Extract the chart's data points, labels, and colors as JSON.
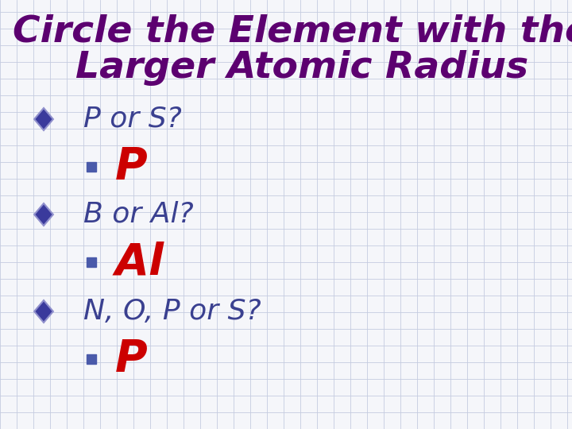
{
  "background_color": "#f5f6fa",
  "grid_color": "#c5cce0",
  "title_line1": "Circle the Element with the",
  "title_line2": "Larger Atomic Radius",
  "title_color": "#5c0070",
  "bullet_color": "#3a4090",
  "answer_color": "#cc0000",
  "bullet_items": [
    {
      "question": "P or S?",
      "answer": "P"
    },
    {
      "question": "B or Al?",
      "answer": "Al"
    },
    {
      "question": "N, O, P or S?",
      "answer": "P"
    }
  ],
  "diamond_color": "#3a3a9c",
  "square_color": "#4a5aaa",
  "title_fontsize": 34,
  "question_fontsize": 26,
  "answer_fontsize": 40,
  "fig_width": 7.2,
  "fig_height": 5.4,
  "dpi": 100
}
